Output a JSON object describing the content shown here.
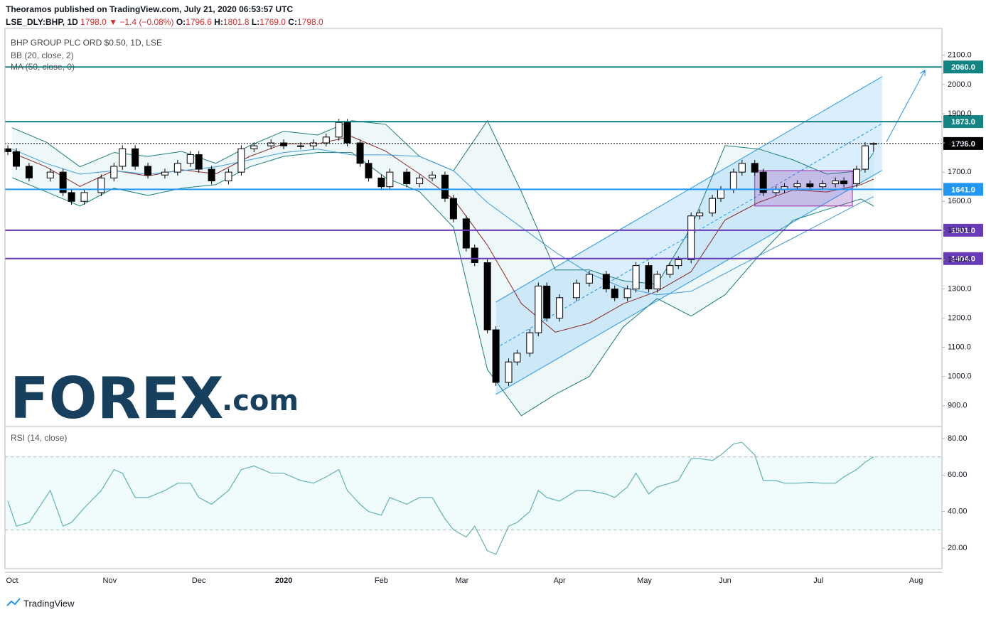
{
  "header": {
    "publisher": "Theoramos published on TradingView.com, July 21, 2020 06:53:57 UTC",
    "symbol": "LSE_DLY:BHP, 1D",
    "last": "1798.0",
    "change": "▼ −1.4 (−0.08%)",
    "ohlc": [
      {
        "label": "O:",
        "value": "1796.6"
      },
      {
        "label": "H:",
        "value": "1801.8"
      },
      {
        "label": "L:",
        "value": "1769.0"
      },
      {
        "label": "C:",
        "value": "1798.0"
      }
    ]
  },
  "chart_data": [
    {
      "type": "candlestick",
      "title": "BHP GROUP PLC ORD $0.50, 1D, LSE",
      "x": [
        -1,
        1,
        4,
        9,
        12,
        14,
        17,
        21,
        24,
        26,
        29,
        32,
        36,
        39,
        42,
        44,
        47,
        51,
        54,
        57,
        61,
        64,
        68,
        71,
        74,
        77,
        79,
        82,
        84,
        87,
        89,
        93,
        96,
        99,
        102,
        104,
        107,
        109,
        112,
        114,
        117,
        119,
        122,
        124,
        126,
        129,
        133,
        136,
        140,
        142,
        145,
        147,
        150,
        152,
        155,
        157,
        160,
        162,
        165,
        167,
        170,
        172,
        175,
        177,
        180,
        182,
        185,
        188,
        191,
        194,
        196,
        199,
        201,
        203
      ],
      "open": [
        1780,
        1770,
        1720,
        1680,
        1700,
        1630,
        1600,
        1630,
        1680,
        1720,
        1780,
        1720,
        1690,
        1700,
        1730,
        1760,
        1710,
        1670,
        1700,
        1780,
        1790,
        1800,
        1790,
        1790,
        1800,
        1820,
        1870,
        1800,
        1730,
        1680,
        1650,
        1700,
        1660,
        1680,
        1690,
        1610,
        1540,
        1440,
        1390,
        1160,
        980,
        1050,
        1080,
        1150,
        1310,
        1200,
        1270,
        1320,
        1350,
        1300,
        1270,
        1300,
        1380,
        1300,
        1350,
        1380,
        1400,
        1550,
        1560,
        1610,
        1640,
        1700,
        1730,
        1700,
        1630,
        1640,
        1650,
        1660,
        1650,
        1660,
        1670,
        1660,
        1710,
        1796.6
      ],
      "high": [
        1792,
        1782,
        1732,
        1712,
        1712,
        1642,
        1642,
        1692,
        1732,
        1792,
        1792,
        1732,
        1712,
        1742,
        1772,
        1772,
        1722,
        1712,
        1792,
        1802,
        1812,
        1812,
        1802,
        1812,
        1832,
        1882,
        1882,
        1812,
        1742,
        1692,
        1712,
        1712,
        1692,
        1702,
        1702,
        1622,
        1552,
        1452,
        1402,
        1172,
        1062,
        1092,
        1162,
        1322,
        1322,
        1282,
        1332,
        1362,
        1362,
        1312,
        1312,
        1392,
        1392,
        1362,
        1392,
        1412,
        1562,
        1572,
        1622,
        1652,
        1712,
        1742,
        1742,
        1712,
        1652,
        1662,
        1672,
        1672,
        1672,
        1682,
        1682,
        1722,
        1802,
        1801.8
      ],
      "low": [
        1758,
        1708,
        1668,
        1668,
        1618,
        1588,
        1588,
        1618,
        1668,
        1708,
        1708,
        1678,
        1678,
        1688,
        1718,
        1698,
        1658,
        1658,
        1688,
        1768,
        1778,
        1778,
        1778,
        1778,
        1788,
        1808,
        1788,
        1718,
        1668,
        1638,
        1638,
        1648,
        1648,
        1668,
        1598,
        1528,
        1428,
        1378,
        1148,
        968,
        968,
        1038,
        1068,
        1138,
        1188,
        1188,
        1258,
        1308,
        1288,
        1258,
        1258,
        1288,
        1288,
        1288,
        1338,
        1368,
        1388,
        1538,
        1548,
        1598,
        1628,
        1688,
        1688,
        1618,
        1618,
        1628,
        1638,
        1638,
        1638,
        1648,
        1648,
        1648,
        1698,
        1769
      ],
      "close": [
        1770,
        1720,
        1680,
        1700,
        1630,
        1600,
        1630,
        1680,
        1720,
        1780,
        1720,
        1690,
        1700,
        1730,
        1760,
        1710,
        1670,
        1700,
        1780,
        1790,
        1800,
        1790,
        1790,
        1800,
        1820,
        1870,
        1800,
        1730,
        1680,
        1650,
        1700,
        1660,
        1680,
        1690,
        1610,
        1540,
        1440,
        1390,
        1160,
        980,
        1050,
        1080,
        1150,
        1310,
        1200,
        1270,
        1320,
        1350,
        1300,
        1270,
        1300,
        1380,
        1300,
        1350,
        1380,
        1400,
        1550,
        1560,
        1610,
        1640,
        1700,
        1730,
        1700,
        1630,
        1640,
        1650,
        1660,
        1650,
        1660,
        1670,
        1660,
        1710,
        1790,
        1798
      ],
      "up_color": "#ffffff",
      "down_color": "#000000",
      "indicators": [
        {
          "name": "BB (20, close, 2)",
          "color": "#1b7d7d",
          "basis_color": "#8b2a2a",
          "x": [
            0,
            8,
            16,
            24,
            32,
            40,
            48,
            56,
            64,
            72,
            80,
            88,
            96,
            104,
            112,
            120,
            128,
            136,
            144,
            152,
            160,
            168,
            176,
            184,
            192,
            200,
            203
          ],
          "upper": [
            1852,
            1803,
            1718,
            1767,
            1754,
            1771,
            1730,
            1791,
            1840,
            1827,
            1876,
            1864,
            1754,
            1705,
            1876,
            1633,
            1365,
            1365,
            1328,
            1316,
            1511,
            1791,
            1779,
            1742,
            1693,
            1705,
            1767
          ],
          "basis": [
            1766,
            1718,
            1651,
            1706,
            1687,
            1708,
            1694,
            1754,
            1797,
            1797,
            1822,
            1772,
            1694,
            1608,
            1450,
            1250,
            1152,
            1183,
            1249,
            1292,
            1359,
            1536,
            1597,
            1639,
            1632,
            1657,
            1676
          ],
          "lower": [
            1681,
            1633,
            1584,
            1645,
            1620,
            1645,
            1657,
            1718,
            1754,
            1767,
            1767,
            1681,
            1633,
            1511,
            1024,
            866,
            939,
            1000,
            1170,
            1267,
            1207,
            1280,
            1414,
            1535,
            1572,
            1608,
            1584
          ]
        },
        {
          "name": "MA (50, close, 0)",
          "color": "#3d9ce0",
          "x": [
            0,
            8,
            16,
            24,
            32,
            40,
            48,
            56,
            64,
            72,
            80,
            88,
            96,
            104,
            112,
            120,
            128,
            136,
            144,
            152,
            160,
            168,
            176,
            184,
            192,
            200,
            203
          ],
          "values": [
            1779,
            1730,
            1693,
            1705,
            1693,
            1705,
            1718,
            1742,
            1767,
            1779,
            1759,
            1759,
            1754,
            1705,
            1596,
            1511,
            1426,
            1353,
            1304,
            1280,
            1292,
            1353,
            1414,
            1474,
            1535,
            1596,
            1616
          ]
        }
      ],
      "levels": [
        {
          "value": 2060,
          "label": "2060.0",
          "color": "#138484"
        },
        {
          "value": 1873,
          "label": "1873.0",
          "color": "#138484"
        },
        {
          "value": 1798,
          "label": "1798.0",
          "color": "#000000",
          "style": "dotted"
        },
        {
          "value": 1641,
          "label": "1641.0",
          "color": "#2196f3"
        },
        {
          "value": 1501,
          "label": "1501.0",
          "color": "#673ab7"
        },
        {
          "value": 1404,
          "label": "1404.0",
          "color": "#673ab7"
        }
      ],
      "channel": {
        "x": [
          114,
          205
        ],
        "upper": [
          1255,
          2027
        ],
        "lower": [
          939,
          1706
        ],
        "color": "#2196f3"
      },
      "box": {
        "x": [
          175,
          198
        ],
        "top": 1705,
        "bottom": 1584,
        "color": "#9c27b0"
      },
      "arrow": {
        "x": [
          206,
          215
        ],
        "y": [
          1803,
          2046
        ],
        "color": "#2196f3"
      },
      "xlim": [
        -1.68,
        219.1
      ],
      "xticks": [
        {
          "value": 0,
          "label": "Oct"
        },
        {
          "value": 23,
          "label": "Nov"
        },
        {
          "value": 44,
          "label": "Dec"
        },
        {
          "value": 64,
          "label": "2020"
        },
        {
          "value": 87,
          "label": "Feb"
        },
        {
          "value": 106,
          "label": "Mar"
        },
        {
          "value": 129,
          "label": "Apr"
        },
        {
          "value": 149,
          "label": "May"
        },
        {
          "value": 168,
          "label": "Jun"
        },
        {
          "value": 190,
          "label": "Jul"
        },
        {
          "value": 213,
          "label": "Aug"
        }
      ],
      "ylim": [
        829,
        2192
      ],
      "yticks": [
        {
          "value": 900,
          "label": "900.0"
        },
        {
          "value": 1000,
          "label": "1000.0"
        },
        {
          "value": 1100,
          "label": "1100.0"
        },
        {
          "value": 1200,
          "label": "1200.0"
        },
        {
          "value": 1300,
          "label": "1300.0"
        },
        {
          "value": 1400,
          "label": "1400.0"
        },
        {
          "value": 1500,
          "label": "1500.0"
        },
        {
          "value": 1600,
          "label": "1600.0"
        },
        {
          "value": 1700,
          "label": "1700.0"
        },
        {
          "value": 1800,
          "label": "1800.0"
        },
        {
          "value": 1900,
          "label": "1900.0"
        },
        {
          "value": 2000,
          "label": "2000.0"
        },
        {
          "value": 2100,
          "label": "2100.0"
        }
      ],
      "grid": true
    },
    {
      "type": "line",
      "title": "RSI (14, close)",
      "color": "#5fb3b3",
      "x": [
        -1,
        1,
        4,
        9,
        12,
        14,
        17,
        21,
        24,
        26,
        29,
        32,
        36,
        39,
        42,
        44,
        47,
        51,
        54,
        57,
        61,
        64,
        68,
        71,
        74,
        77,
        79,
        82,
        84,
        87,
        89,
        93,
        96,
        99,
        102,
        104,
        107,
        109,
        112,
        114,
        117,
        119,
        122,
        124,
        126,
        129,
        133,
        136,
        140,
        142,
        145,
        147,
        150,
        152,
        155,
        157,
        160,
        162,
        165,
        167,
        170,
        172,
        175,
        177,
        180,
        182,
        185,
        188,
        191,
        194,
        196,
        199,
        201,
        203
      ],
      "values": [
        45.7,
        32,
        34,
        51.5,
        32,
        34,
        42,
        51.5,
        63,
        61,
        47.7,
        47.7,
        51.5,
        55.5,
        55.5,
        47.7,
        44,
        51.5,
        63,
        65,
        61,
        61,
        57,
        55.5,
        59,
        63,
        51.5,
        44,
        40,
        38,
        47.7,
        44,
        47.7,
        47.7,
        36,
        30,
        26,
        32,
        18.5,
        16.5,
        32,
        34,
        40,
        51.5,
        47.7,
        45.7,
        51.5,
        51.5,
        49.6,
        47.7,
        53.5,
        61,
        49.6,
        53.5,
        55.5,
        57,
        69,
        69,
        68,
        71,
        77,
        78,
        71,
        57,
        57,
        55.5,
        55.5,
        56,
        55.5,
        55.5,
        59,
        63,
        67,
        70
      ],
      "band": [
        30,
        70
      ],
      "xlim": [
        -1.68,
        219.1
      ],
      "ylim": [
        8.7,
        86.6
      ],
      "yticks": [
        {
          "value": 20,
          "label": "20.00"
        },
        {
          "value": 40,
          "label": "40.00"
        },
        {
          "value": 60,
          "label": "60.00"
        },
        {
          "value": 80,
          "label": "80.00"
        }
      ]
    }
  ],
  "logo": {
    "name": "FOREX",
    "suffix": ".com"
  },
  "footer": "TradingView"
}
